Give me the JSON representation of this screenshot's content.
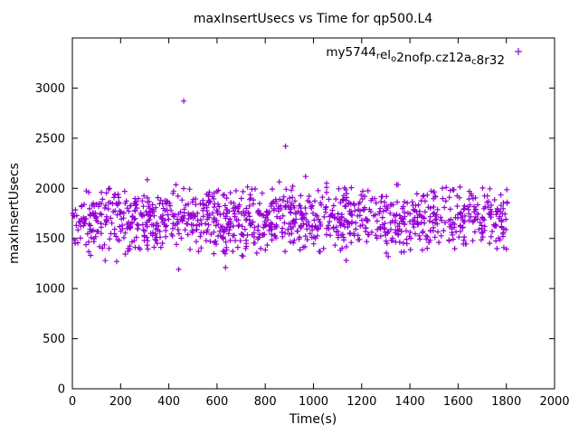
{
  "chart_data": {
    "type": "scatter",
    "title": "maxInsertUsecs vs Time for qp500.L4",
    "xlabel": "Time(s)",
    "ylabel": "maxInsertUsecs",
    "xlim": [
      0,
      2000
    ],
    "ylim": [
      0,
      3500
    ],
    "xticks": [
      0,
      200,
      400,
      600,
      800,
      1000,
      1200,
      1400,
      1600,
      1800,
      2000
    ],
    "yticks": [
      0,
      500,
      1000,
      1500,
      2000,
      2500,
      3000
    ],
    "grid": false,
    "marker": "plus",
    "color": "#9400d3",
    "legend_position": "top-right",
    "legend": {
      "segments": [
        {
          "t": "my5744"
        },
        {
          "t": "r",
          "sub": true
        },
        {
          "t": "el"
        },
        {
          "t": "o",
          "sub": true
        },
        {
          "t": "2nofp.cz12a"
        },
        {
          "t": "c",
          "sub": true
        },
        {
          "t": "8r32"
        }
      ]
    },
    "outliers": [
      [
        462,
        2870
      ],
      [
        884,
        2420
      ]
    ],
    "cluster": {
      "description": "dense horizontal band of samples",
      "count": 1150,
      "x_min": 2,
      "x_max": 1806,
      "y_mean": 1690,
      "y_std": 160,
      "y_min": 1185,
      "y_max": 2120,
      "seed": 987654321
    }
  }
}
